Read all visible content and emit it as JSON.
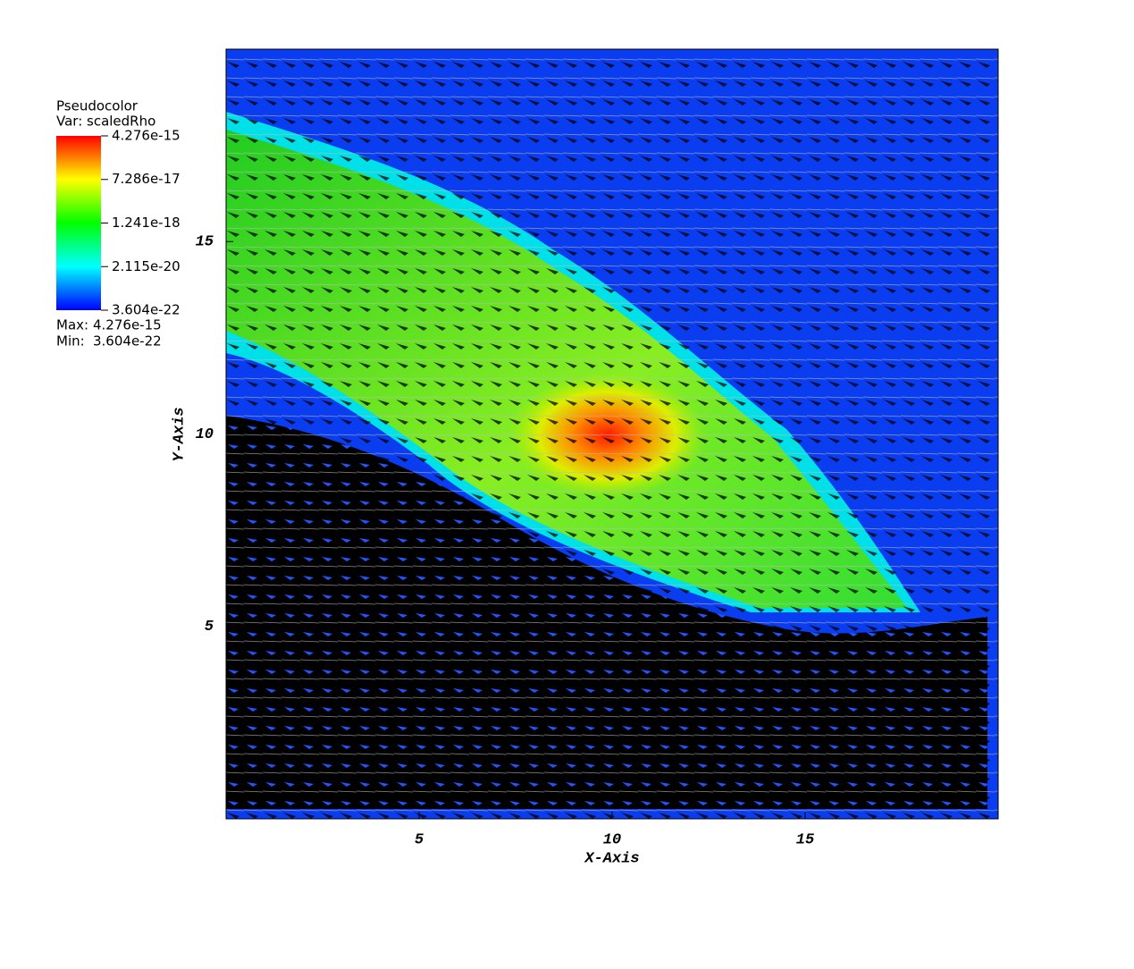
{
  "chart_data": {
    "type": "pseudocolor",
    "xlabel": "X-Axis",
    "ylabel": "Y-Axis",
    "xlim": [
      0,
      20
    ],
    "ylim": [
      0,
      20
    ],
    "xticks": [
      5,
      10,
      15
    ],
    "yticks": [
      5,
      10,
      15
    ],
    "legend": {
      "title": "Pseudocolor",
      "variable": "Var: scaledRho",
      "scale": "log",
      "lim": [
        3.604e-22,
        4.276e-15
      ],
      "ticks": [
        4.276e-15,
        7.286e-17,
        1.241e-18,
        2.115e-20,
        3.604e-22
      ],
      "max_label": "Max:",
      "max": 4.276e-15,
      "min_label": "Min:",
      "min": 3.604e-22
    }
  }
}
